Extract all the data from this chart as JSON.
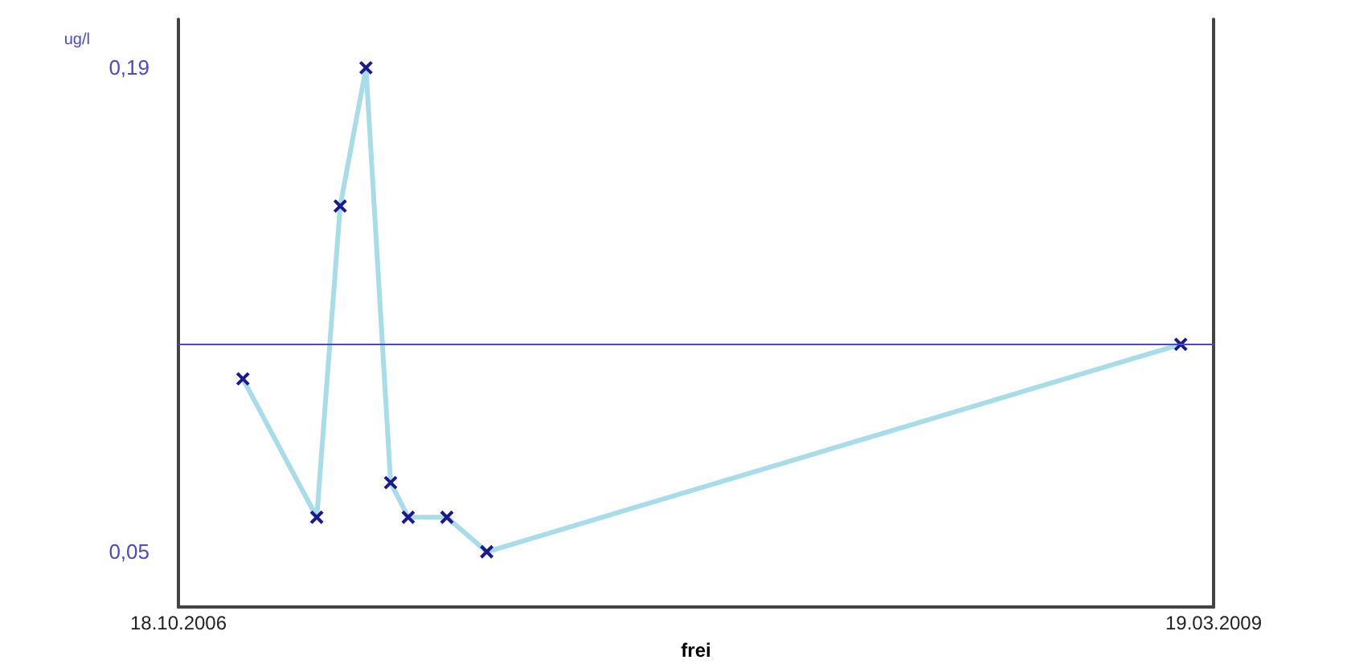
{
  "chart_data": {
    "type": "line",
    "xlabel": "frei",
    "ylabel": "ug/l",
    "x": [
      "2006-12-12",
      "2007-02-13",
      "2007-03-05",
      "2007-03-27",
      "2007-04-17",
      "2007-05-02",
      "2007-06-04",
      "2007-07-08",
      "2009-02-19"
    ],
    "series": [
      {
        "color": "#a8dce8",
        "values": [
          0.1,
          0.06,
          0.15,
          0.19,
          0.07,
          0.06,
          0.06,
          0.05,
          0.11
        ]
      }
    ],
    "xlim": [
      "2006-10-18",
      "2009-03-19"
    ],
    "xticks": [
      {
        "value": "2006-10-18",
        "label": "18.10.2006"
      },
      {
        "value": "2009-03-19",
        "label": "19.03.2009"
      }
    ],
    "ylim": [
      0.034,
      0.204
    ],
    "yticks": [
      {
        "value": 0.05,
        "label": "0,05"
      },
      {
        "value": 0.19,
        "label": "0,19"
      }
    ],
    "ref_lines": [
      {
        "axis": "y",
        "value": 0.11,
        "color": "#4a4acc"
      }
    ],
    "marker": "cross",
    "line_style": "solid"
  }
}
